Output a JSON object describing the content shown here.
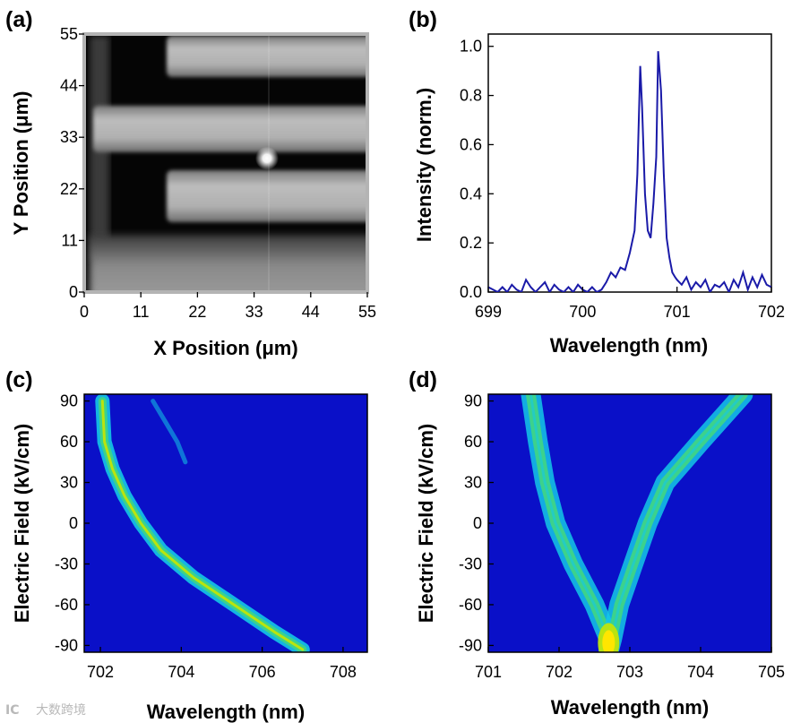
{
  "watermark": {
    "text": "大数跨境",
    "logo": "IC"
  },
  "colors": {
    "spectrum_line": "#1a1aa8",
    "map_background": "#0a10c8",
    "map_ridge_outer": "#14c8e6",
    "map_ridge_inner": "#3cd28c",
    "map_ridge_core": "#c8e600",
    "map_hot": "#ffe600"
  },
  "chart_data": [
    {
      "panel": "(a)",
      "type": "heatmap",
      "description_kind": "grayscale microscope image",
      "xlabel": "X Position (μm)",
      "ylabel": "Y Position (μm)",
      "xlim": [
        0,
        55
      ],
      "ylim": [
        0,
        55
      ],
      "xticks": [
        "0",
        "11",
        "22",
        "33",
        "44",
        "55"
      ],
      "yticks": [
        "0",
        "11",
        "22",
        "33",
        "44",
        "55"
      ],
      "bright_spot": {
        "x": 35.5,
        "y": 28.5
      }
    },
    {
      "panel": "(b)",
      "type": "line",
      "xlabel": "Wavelength (nm)",
      "ylabel": "Intensity (norm.)",
      "xlim": [
        699,
        702
      ],
      "ylim": [
        0,
        1.05
      ],
      "xticks": [
        "699",
        "700",
        "701",
        "702"
      ],
      "yticks": [
        "0.0",
        "0.2",
        "0.4",
        "0.6",
        "0.8",
        "1.0"
      ],
      "series": [
        {
          "name": "spectrum",
          "x": [
            699.0,
            699.05,
            699.1,
            699.15,
            699.2,
            699.25,
            699.3,
            699.35,
            699.4,
            699.45,
            699.5,
            699.55,
            699.6,
            699.65,
            699.7,
            699.75,
            699.8,
            699.85,
            699.9,
            699.95,
            700.0,
            700.05,
            700.1,
            700.15,
            700.2,
            700.25,
            700.3,
            700.35,
            700.4,
            700.45,
            700.5,
            700.55,
            700.58,
            700.61,
            700.63,
            700.66,
            700.69,
            700.72,
            700.75,
            700.78,
            700.8,
            700.83,
            700.86,
            700.89,
            700.92,
            700.95,
            700.98,
            701.0,
            701.05,
            701.1,
            701.15,
            701.2,
            701.25,
            701.3,
            701.35,
            701.4,
            701.45,
            701.5,
            701.55,
            701.6,
            701.65,
            701.7,
            701.75,
            701.8,
            701.85,
            701.9,
            701.95,
            702.0
          ],
          "y": [
            0.02,
            0.01,
            0.0,
            0.02,
            0.0,
            0.03,
            0.01,
            0.0,
            0.05,
            0.02,
            0.0,
            0.02,
            0.04,
            0.0,
            0.03,
            0.01,
            0.0,
            0.02,
            0.0,
            0.03,
            0.01,
            0.0,
            0.02,
            0.0,
            0.01,
            0.04,
            0.08,
            0.06,
            0.1,
            0.09,
            0.16,
            0.25,
            0.48,
            0.92,
            0.75,
            0.4,
            0.25,
            0.22,
            0.36,
            0.55,
            0.98,
            0.82,
            0.48,
            0.22,
            0.14,
            0.08,
            0.06,
            0.05,
            0.03,
            0.06,
            0.01,
            0.04,
            0.02,
            0.05,
            0.0,
            0.03,
            0.02,
            0.04,
            0.0,
            0.05,
            0.02,
            0.08,
            0.01,
            0.06,
            0.02,
            0.07,
            0.03,
            0.02
          ]
        }
      ]
    },
    {
      "panel": "(c)",
      "type": "heatmap",
      "xlabel": "Wavelength (nm)",
      "ylabel": "Electric Field (kV/cm)",
      "xlim": [
        701.6,
        708.6
      ],
      "ylim": [
        -95,
        95
      ],
      "xticks": [
        "702",
        "704",
        "706",
        "708"
      ],
      "yticks": [
        "-90",
        "-60",
        "-30",
        "0",
        "30",
        "60",
        "90"
      ],
      "series": [
        {
          "name": "ridge-main",
          "field": [
            90,
            60,
            40,
            20,
            0,
            -20,
            -40,
            -60,
            -80,
            -93
          ],
          "wavelength": [
            702.05,
            702.1,
            702.3,
            702.6,
            703.0,
            703.5,
            704.3,
            705.3,
            706.3,
            707.0
          ]
        },
        {
          "name": "ridge-weak",
          "field": [
            90,
            75,
            60,
            45
          ],
          "wavelength": [
            703.3,
            703.6,
            703.9,
            704.1
          ]
        }
      ]
    },
    {
      "panel": "(d)",
      "type": "heatmap",
      "xlabel": "Wavelength (nm)",
      "ylabel": "Electric Field (kV/cm)",
      "xlim": [
        701,
        705
      ],
      "ylim": [
        -95,
        95
      ],
      "xticks": [
        "701",
        "702",
        "703",
        "704",
        "705"
      ],
      "yticks": [
        "-90",
        "-60",
        "-30",
        "0",
        "30",
        "60",
        "90"
      ],
      "series": [
        {
          "name": "branch-left",
          "field": [
            95,
            60,
            30,
            0,
            -30,
            -60,
            -85,
            -95
          ],
          "wavelength": [
            701.6,
            701.7,
            701.8,
            701.95,
            702.2,
            702.5,
            702.7,
            702.7
          ]
        },
        {
          "name": "branch-right",
          "field": [
            95,
            60,
            30,
            0,
            -30,
            -60,
            -85,
            -95
          ],
          "wavelength": [
            704.6,
            704.0,
            703.5,
            703.25,
            703.05,
            702.85,
            702.75,
            702.7
          ]
        }
      ]
    }
  ]
}
